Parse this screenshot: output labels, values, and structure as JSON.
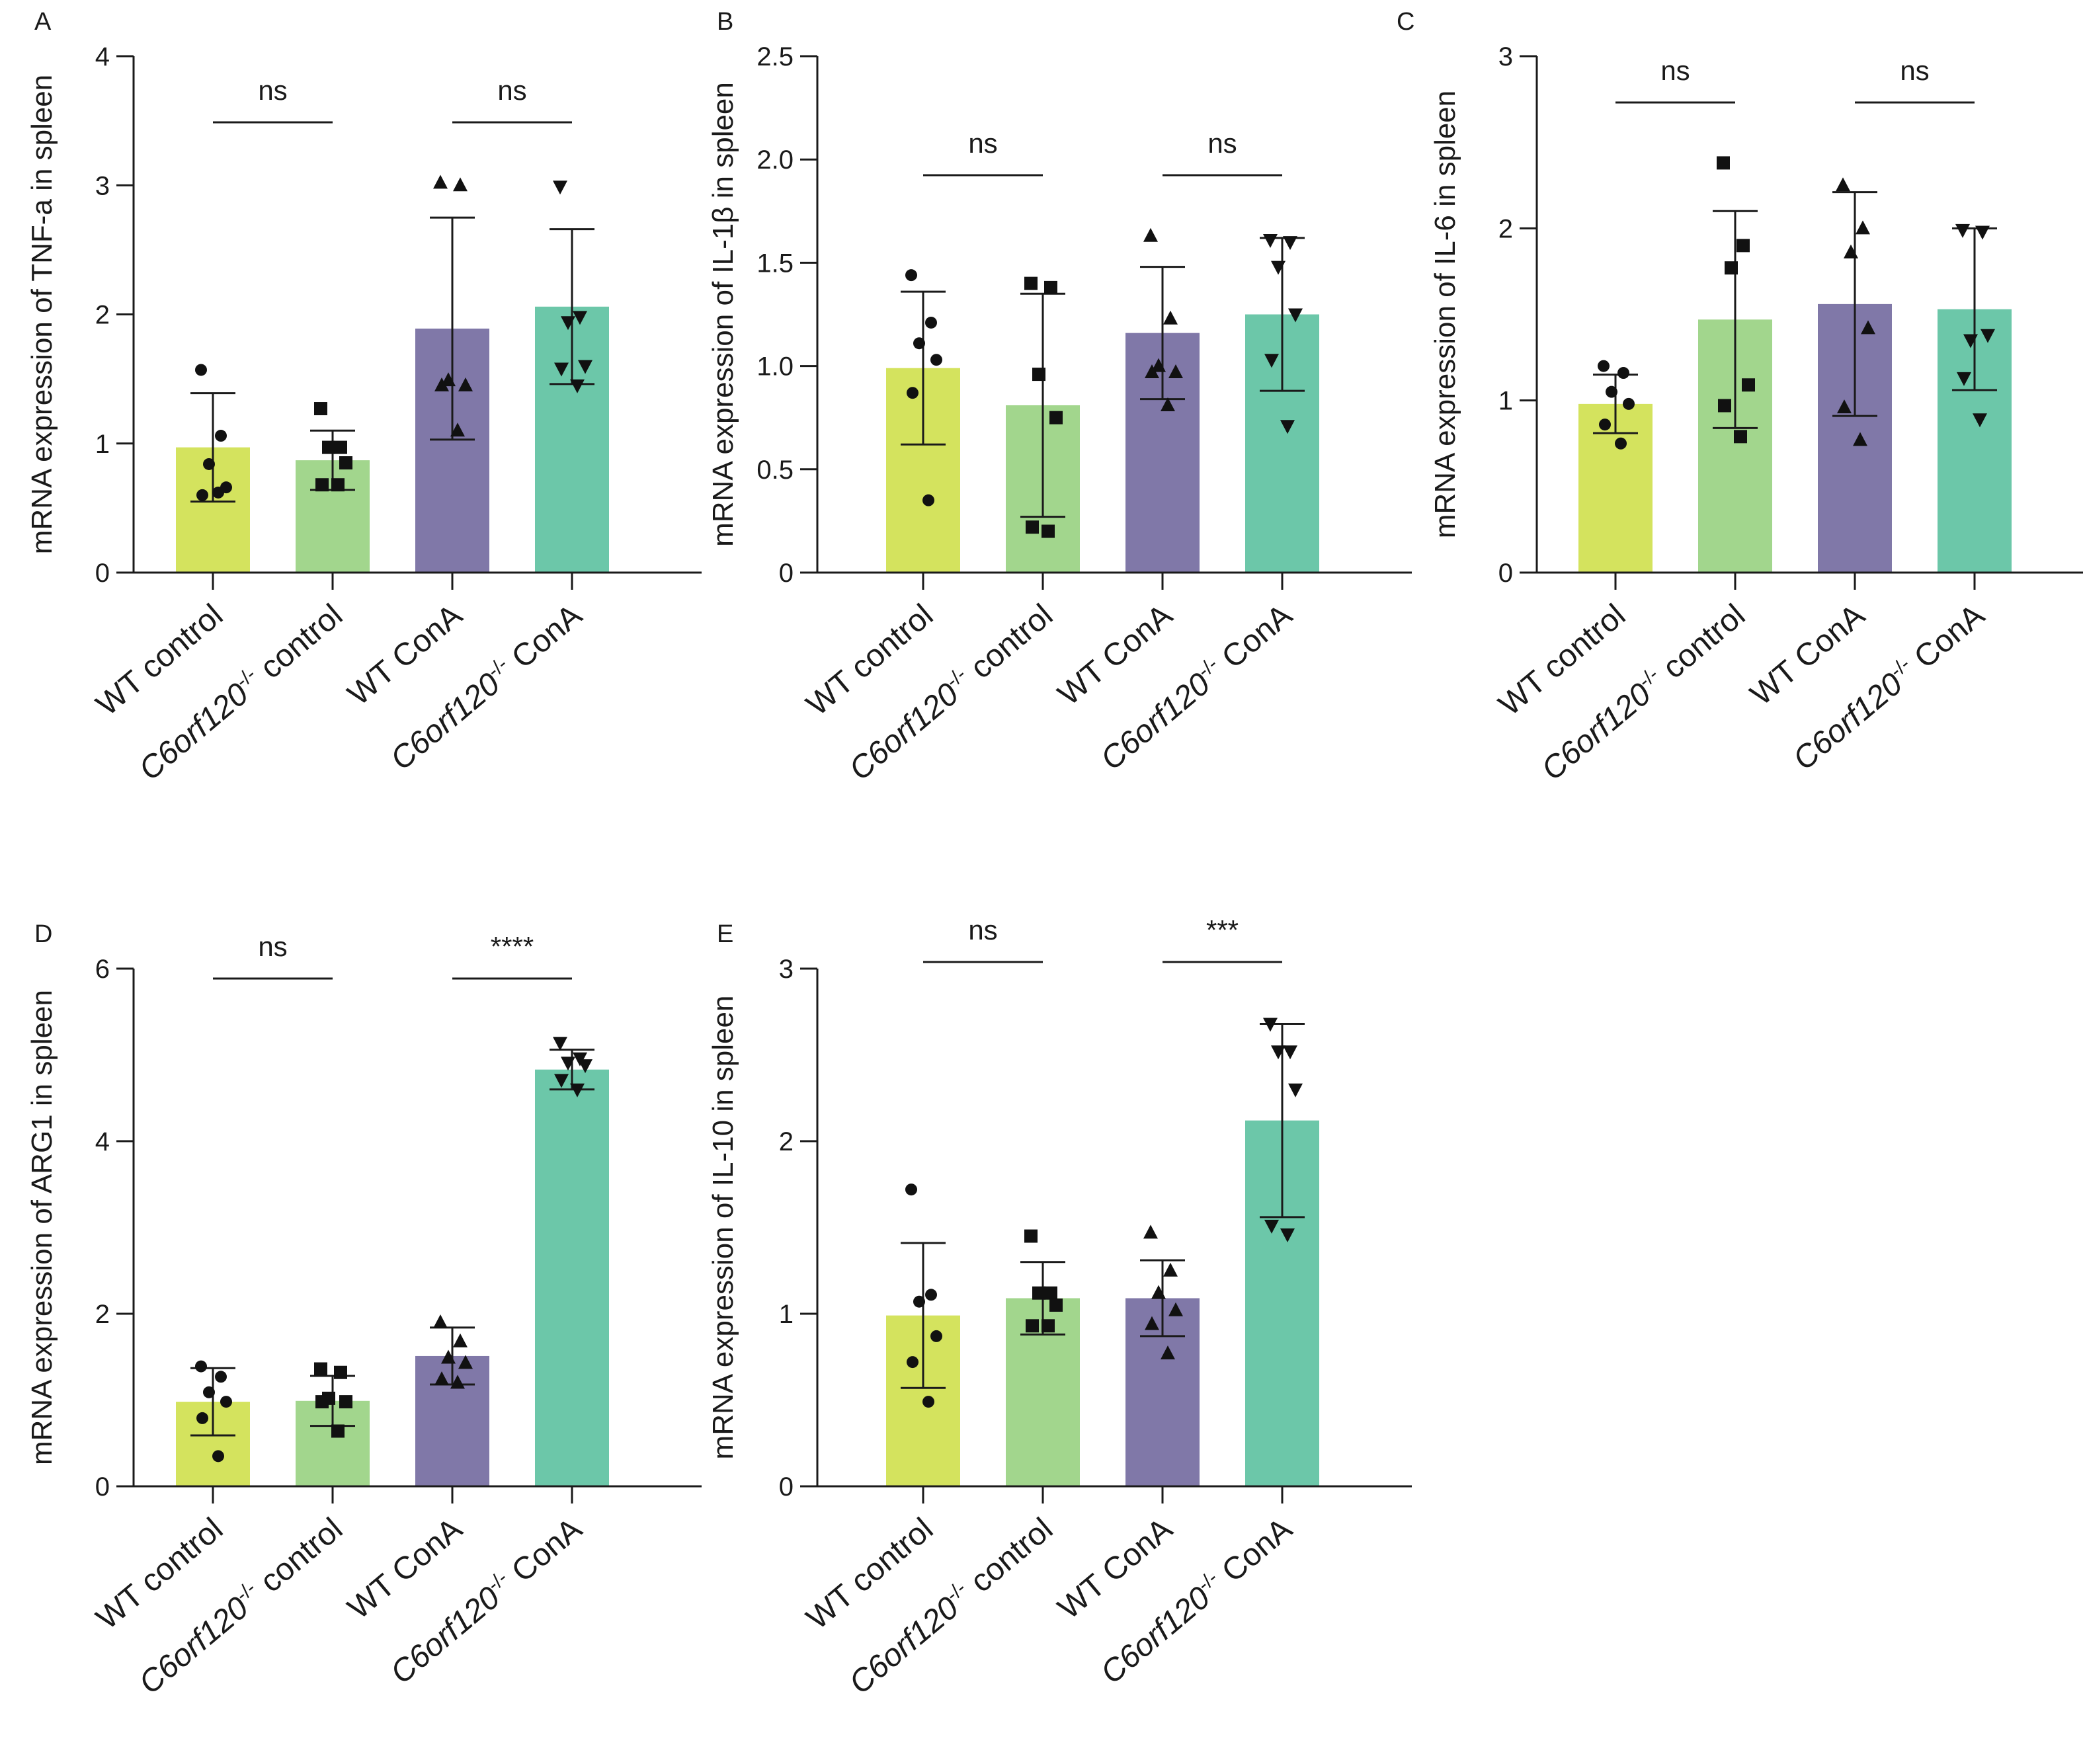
{
  "colors": {
    "wt_control": "#d4e35e",
    "ko_control": "#a2d68d",
    "wt_cona": "#8078a8",
    "ko_cona": "#6cc7a9"
  },
  "categories": [
    {
      "main": "WT control",
      "italic": "",
      "sup": "",
      "rest": ""
    },
    {
      "main": "",
      "italic": "C6orf120",
      "sup": "-/-",
      "rest": " control"
    },
    {
      "main": "WT ConA",
      "italic": "",
      "sup": "",
      "rest": ""
    },
    {
      "main": "",
      "italic": "C6orf120",
      "sup": "-/-",
      "rest": " ConA"
    }
  ],
  "chart_data": [
    {
      "panel": "A",
      "type": "bar",
      "ylabel": "mRNA expression of TNF-a in spleen",
      "ylim": [
        0,
        4
      ],
      "yticks": [
        0,
        1,
        2,
        3,
        4
      ],
      "ytick_labels": [
        "0",
        "1",
        "2",
        "3",
        "4"
      ],
      "marker_shapes": [
        "circle",
        "square",
        "triangle-up",
        "triangle-down"
      ],
      "means": [
        0.97,
        0.87,
        1.89,
        2.06
      ],
      "errors": [
        0.42,
        0.23,
        0.86,
        0.6
      ],
      "points": [
        [
          1.57,
          1.06,
          0.84,
          0.66,
          0.6,
          0.62
        ],
        [
          1.27,
          0.97,
          0.97,
          0.85,
          0.68,
          0.68
        ],
        [
          3.02,
          3.0,
          1.49,
          1.45,
          1.45,
          1.1
        ],
        [
          2.99,
          1.98,
          1.94,
          1.6,
          1.58,
          1.45
        ]
      ],
      "significance": [
        {
          "groups": [
            0,
            1
          ],
          "label": "ns"
        },
        {
          "groups": [
            2,
            3
          ],
          "label": "ns"
        }
      ]
    },
    {
      "panel": "B",
      "type": "bar",
      "ylabel": "mRNA expression of IL-1β in spleen",
      "ylim": [
        0,
        2.5
      ],
      "yticks": [
        0,
        0.5,
        1.0,
        1.5,
        2.0,
        2.5
      ],
      "ytick_labels": [
        "0",
        "0.5",
        "1.0",
        "1.5",
        "2.0",
        "2.5"
      ],
      "marker_shapes": [
        "circle",
        "square",
        "triangle-up",
        "triangle-down"
      ],
      "means": [
        0.99,
        0.81,
        1.16,
        1.25
      ],
      "errors": [
        0.37,
        0.54,
        0.32,
        0.37
      ],
      "points": [
        [
          1.44,
          1.21,
          1.11,
          1.03,
          0.87,
          0.35
        ],
        [
          1.4,
          1.38,
          0.96,
          0.75,
          0.22,
          0.2
        ],
        [
          1.63,
          1.23,
          1.0,
          0.97,
          0.97,
          0.81
        ],
        [
          1.61,
          1.6,
          1.48,
          1.25,
          1.03,
          0.71
        ]
      ],
      "significance": [
        {
          "groups": [
            0,
            1
          ],
          "label": "ns"
        },
        {
          "groups": [
            2,
            3
          ],
          "label": "ns"
        }
      ]
    },
    {
      "panel": "C",
      "type": "bar",
      "ylabel": "mRNA expression of IL-6 in spleen",
      "ylim": [
        0,
        3
      ],
      "yticks": [
        0,
        1,
        2,
        3
      ],
      "ytick_labels": [
        "0",
        "1",
        "2",
        "3"
      ],
      "marker_shapes": [
        "circle",
        "square",
        "triangle-up",
        "triangle-down"
      ],
      "means": [
        0.98,
        1.47,
        1.56,
        1.53
      ],
      "errors": [
        0.17,
        0.63,
        0.65,
        0.47
      ],
      "points": [
        [
          1.2,
          1.16,
          1.05,
          0.98,
          0.86,
          0.75
        ],
        [
          2.38,
          1.9,
          1.77,
          1.09,
          0.97,
          0.79
        ],
        [
          2.25,
          2.0,
          1.86,
          1.42,
          0.96,
          0.77
        ],
        [
          1.99,
          1.98,
          1.35,
          1.38,
          1.13,
          0.89
        ]
      ],
      "significance": [
        {
          "groups": [
            0,
            1
          ],
          "label": "ns"
        },
        {
          "groups": [
            2,
            3
          ],
          "label": "ns"
        }
      ]
    },
    {
      "panel": "D",
      "type": "bar",
      "ylabel": "mRNA expression of ARG1 in spleen",
      "ylim": [
        0,
        6
      ],
      "yticks": [
        0,
        2,
        4,
        6
      ],
      "ytick_labels": [
        "0",
        "2",
        "4",
        "6"
      ],
      "marker_shapes": [
        "circle",
        "square",
        "triangle-up",
        "triangle-down"
      ],
      "means": [
        0.98,
        0.99,
        1.51,
        4.83
      ],
      "errors": [
        0.39,
        0.29,
        0.33,
        0.23
      ],
      "points": [
        [
          1.39,
          1.27,
          1.09,
          0.98,
          0.79,
          0.35
        ],
        [
          1.36,
          1.32,
          1.02,
          0.98,
          0.98,
          0.64
        ],
        [
          1.9,
          1.68,
          1.49,
          1.43,
          1.24,
          1.2
        ],
        [
          5.14,
          4.96,
          4.91,
          4.88,
          4.71,
          4.6
        ]
      ],
      "significance": [
        {
          "groups": [
            0,
            1
          ],
          "label": "ns"
        },
        {
          "groups": [
            2,
            3
          ],
          "label": "****"
        }
      ]
    },
    {
      "panel": "E",
      "type": "bar",
      "ylabel": "mRNA expression of IL-10 in spleen",
      "ylim": [
        0,
        3
      ],
      "yticks": [
        0,
        1,
        2,
        3
      ],
      "ytick_labels": [
        "0",
        "1",
        "2",
        "3"
      ],
      "marker_shapes": [
        "circle",
        "square",
        "triangle-up",
        "triangle-down"
      ],
      "means": [
        0.99,
        1.09,
        1.09,
        2.12
      ],
      "errors": [
        0.42,
        0.21,
        0.22,
        0.56
      ],
      "points": [
        [
          1.72,
          1.11,
          1.07,
          0.87,
          0.72,
          0.49
        ],
        [
          1.45,
          1.12,
          1.12,
          1.05,
          0.93,
          0.93
        ],
        [
          1.47,
          1.25,
          1.12,
          1.02,
          0.94,
          0.77
        ],
        [
          2.68,
          2.52,
          2.52,
          2.3,
          1.51,
          1.46
        ]
      ],
      "significance": [
        {
          "groups": [
            0,
            1
          ],
          "label": "ns"
        },
        {
          "groups": [
            2,
            3
          ],
          "label": "***"
        }
      ]
    }
  ]
}
